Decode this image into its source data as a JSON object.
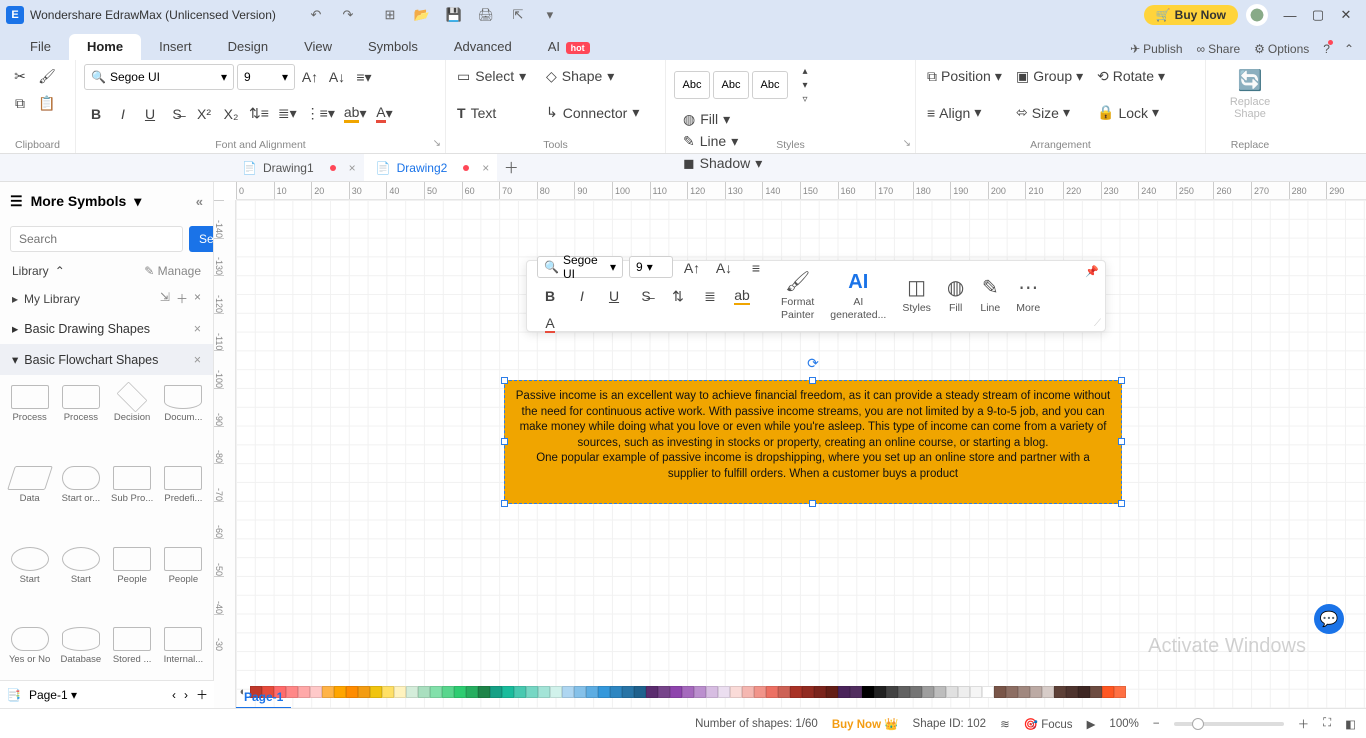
{
  "title": "Wondershare EdrawMax (Unlicensed Version)",
  "buy_now": "Buy Now",
  "menu": {
    "file": "File",
    "home": "Home",
    "insert": "Insert",
    "design": "Design",
    "view": "View",
    "symbols": "Symbols",
    "advanced": "Advanced",
    "ai": "AI",
    "hot": "hot",
    "publish": "Publish",
    "share": "Share",
    "options": "Options"
  },
  "ribbon": {
    "font_name": "Segoe UI",
    "font_size": "9",
    "clipboard": "Clipboard",
    "fontalign": "Font and Alignment",
    "tools": "Tools",
    "styles": "Styles",
    "arrangement": "Arrangement",
    "replace": "Replace",
    "select": "Select",
    "shape": "Shape",
    "text": "Text",
    "connector": "Connector",
    "abc": "Abc",
    "fill": "Fill",
    "line": "Line",
    "shadow": "Shadow",
    "position": "Position",
    "group": "Group",
    "rotate": "Rotate",
    "align": "Align",
    "size": "Size",
    "lock": "Lock",
    "replace_shape": "Replace\nShape"
  },
  "doctabs": {
    "d1": "Drawing1",
    "d2": "Drawing2"
  },
  "side": {
    "more": "More Symbols",
    "search_ph": "Search",
    "search_btn": "Search",
    "library": "Library",
    "manage": "Manage",
    "mylib": "My Library",
    "basic_drawing": "Basic Drawing Shapes",
    "basic_flow": "Basic Flowchart Shapes",
    "shapes": [
      {
        "l": "Process"
      },
      {
        "l": "Process"
      },
      {
        "l": "Decision"
      },
      {
        "l": "Docum..."
      },
      {
        "l": "Data"
      },
      {
        "l": "Start or..."
      },
      {
        "l": "Sub Pro..."
      },
      {
        "l": "Predefi..."
      },
      {
        "l": "Start"
      },
      {
        "l": "Start"
      },
      {
        "l": "People"
      },
      {
        "l": "People"
      },
      {
        "l": "Yes or No"
      },
      {
        "l": "Database"
      },
      {
        "l": "Stored ..."
      },
      {
        "l": "Internal..."
      }
    ]
  },
  "float": {
    "font": "Segoe UI",
    "size": "9",
    "format_painter": "Format\nPainter",
    "ai_gen": "AI\ngenerated...",
    "styles": "Styles",
    "fill": "Fill",
    "line": "Line",
    "more": "More"
  },
  "shape_text": "Passive income is an excellent way to achieve financial freedom, as it can provide a steady stream of income without the need for continuous active work. With passive income streams, you are not limited by a 9-to-5 job, and you can make money while doing what you love or even while you're asleep. This type of income can come from a variety of sources, such as investing in stocks or property, creating an online course, or starting a blog.\nOne popular example of passive income is dropshipping, where you set up an online store and partner with a supplier to fulfill orders. When a customer buys a product",
  "ruler_h": [
    "0",
    "10",
    "20",
    "30",
    "40",
    "50",
    "60",
    "70",
    "80",
    "90",
    "100",
    "110",
    "120",
    "130",
    "140",
    "150",
    "160",
    "170",
    "180",
    "190",
    "200",
    "210",
    "220",
    "230",
    "240",
    "250",
    "260",
    "270",
    "280",
    "290"
  ],
  "ruler_v": [
    "-140",
    "-130",
    "-120",
    "-110",
    "-100",
    "-90",
    "-80",
    "-70",
    "-60",
    "-50",
    "-40",
    "-30"
  ],
  "colors": [
    "#c0392b",
    "#e74c3c",
    "#ff6b6b",
    "#ff8787",
    "#ffa8a8",
    "#ffc9c9",
    "#ffb347",
    "#ffa500",
    "#ff8c00",
    "#f39c12",
    "#f1c40f",
    "#ffe066",
    "#fff3bf",
    "#d4edda",
    "#a9dfbf",
    "#82e0aa",
    "#58d68d",
    "#2ecc71",
    "#27ae60",
    "#1e8449",
    "#16a085",
    "#1abc9c",
    "#48c9b0",
    "#76d7c4",
    "#a3e4d7",
    "#d1f2eb",
    "#aed6f1",
    "#85c1e9",
    "#5dade2",
    "#3498db",
    "#2e86c1",
    "#2874a6",
    "#1f618d",
    "#5b2c6f",
    "#76448a",
    "#8e44ad",
    "#a569bd",
    "#bb8fce",
    "#d7bde2",
    "#ebdef0",
    "#fadbd8",
    "#f5b7b1",
    "#f1948a",
    "#ec7063",
    "#cd6155",
    "#a93226",
    "#922b21",
    "#7b241c",
    "#641e16",
    "#4a235a",
    "#512e5f",
    "#000000",
    "#212121",
    "#424242",
    "#616161",
    "#757575",
    "#9e9e9e",
    "#bdbdbd",
    "#e0e0e0",
    "#eeeeee",
    "#f5f5f5",
    "#ffffff",
    "#795548",
    "#8d6e63",
    "#a1887f",
    "#bcaaa4",
    "#d7ccc8",
    "#5d4037",
    "#4e342e",
    "#3e2723",
    "#6d4c41",
    "#ff5722",
    "#ff7043"
  ],
  "page": "Page-1",
  "status": {
    "shapes": "Number of shapes: 1/60",
    "buy": "Buy Now",
    "shapeid": "Shape ID: 102",
    "focus": "Focus",
    "zoom": "100%"
  },
  "watermark": "Activate Windows"
}
